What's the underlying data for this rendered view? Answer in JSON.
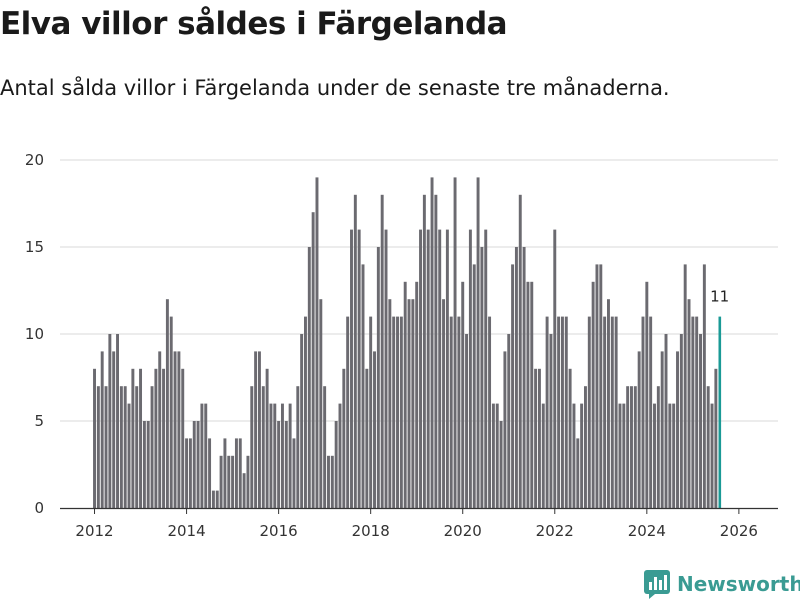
{
  "header": {
    "title": "Elva villor såldes i Färgelanda",
    "subtitle": "Antal sålda villor i Färgelanda under de senaste tre månaderna."
  },
  "brand": {
    "name": "Newsworthy"
  },
  "colors": {
    "bar": "#6b6a70",
    "highlight": "#1a9a96",
    "grid": "#d9d9d9",
    "axis": "#333333"
  },
  "chart_data": {
    "type": "bar",
    "title": "Elva villor såldes i Färgelanda",
    "subtitle": "Antal sålda villor i Färgelanda under de senaste tre månaderna.",
    "xlabel": "",
    "ylabel": "",
    "ylim": [
      0,
      20
    ],
    "yticks": [
      0,
      5,
      10,
      15,
      20
    ],
    "xlim": [
      2011.25,
      2026.85
    ],
    "xticks": [
      2012,
      2014,
      2016,
      2018,
      2020,
      2022,
      2024,
      2026
    ],
    "grid": true,
    "x_start": 2012.0,
    "x_step_months": 1,
    "values": [
      8,
      7,
      9,
      7,
      10,
      9,
      10,
      7,
      7,
      6,
      8,
      7,
      8,
      5,
      5,
      7,
      8,
      9,
      8,
      12,
      11,
      9,
      9,
      8,
      4,
      4,
      5,
      5,
      6,
      6,
      4,
      1,
      1,
      3,
      4,
      3,
      3,
      4,
      4,
      2,
      3,
      7,
      9,
      9,
      7,
      8,
      6,
      6,
      5,
      6,
      5,
      6,
      4,
      7,
      10,
      11,
      15,
      17,
      19,
      12,
      7,
      3,
      3,
      5,
      6,
      8,
      11,
      16,
      18,
      16,
      14,
      8,
      11,
      9,
      15,
      18,
      16,
      12,
      11,
      11,
      11,
      13,
      12,
      12,
      13,
      16,
      18,
      16,
      19,
      18,
      16,
      12,
      16,
      11,
      19,
      11,
      13,
      10,
      16,
      14,
      19,
      15,
      16,
      11,
      6,
      6,
      5,
      9,
      10,
      14,
      15,
      18,
      15,
      13,
      13,
      8,
      8,
      6,
      11,
      10,
      16,
      11,
      11,
      11,
      8,
      6,
      4,
      6,
      7,
      11,
      13,
      14,
      14,
      11,
      12,
      11,
      11,
      6,
      6,
      7,
      7,
      7,
      9,
      11,
      13,
      11,
      6,
      7,
      9,
      10,
      6,
      6,
      9,
      10,
      14,
      12,
      11,
      11,
      10,
      14,
      7,
      6,
      8,
      11
    ],
    "highlight_last": true,
    "annotation": "11"
  }
}
